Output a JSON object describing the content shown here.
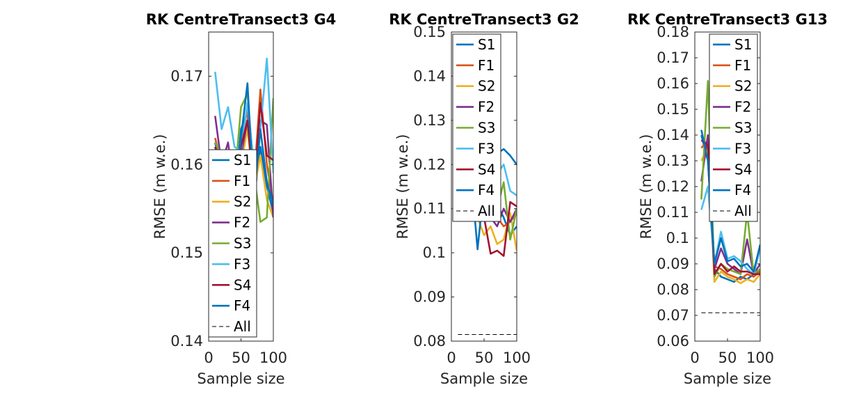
{
  "chart_data": [
    {
      "type": "line",
      "title": "RK CentreTransect3 G4",
      "xlabel": "Sample size",
      "ylabel": "RMSE (m w.e.)",
      "xlim": [
        0,
        100
      ],
      "ylim": [
        0.14,
        0.175
      ],
      "xticks": [
        "0",
        "50",
        "100"
      ],
      "yticks": [
        0.14,
        0.15,
        0.16,
        0.17
      ],
      "ytick_labels": [
        "0.14",
        "0.15",
        "0.16",
        "0.17"
      ],
      "legend_position": "lower-right",
      "x": [
        10,
        20,
        30,
        40,
        50,
        60,
        70,
        80,
        90,
        100
      ],
      "series": [
        {
          "name": "S1",
          "color": "#0072BD",
          "dash": false,
          "values": [
            0.1625,
            0.159,
            0.158,
            0.156,
            0.164,
            0.166,
            0.156,
            0.162,
            0.1575,
            0.1545
          ]
        },
        {
          "name": "F1",
          "color": "#D95319",
          "dash": false,
          "values": [
            0.163,
            0.16,
            0.161,
            0.159,
            0.162,
            0.1665,
            0.158,
            0.1685,
            0.16,
            0.1555
          ]
        },
        {
          "name": "S2",
          "color": "#EDB120",
          "dash": false,
          "values": [
            0.16,
            0.158,
            0.157,
            0.155,
            0.16,
            0.164,
            0.157,
            0.161,
            0.156,
            0.154
          ]
        },
        {
          "name": "F2",
          "color": "#7E2F8E",
          "dash": false,
          "values": [
            0.1655,
            0.16,
            0.1625,
            0.157,
            0.161,
            0.165,
            0.1575,
            0.165,
            0.1645,
            0.154
          ]
        },
        {
          "name": "S3",
          "color": "#77AC30",
          "dash": false,
          "values": [
            0.1625,
            0.161,
            0.16,
            0.158,
            0.1665,
            0.168,
            0.159,
            0.1535,
            0.154,
            0.1675
          ]
        },
        {
          "name": "F3",
          "color": "#4DBEEE",
          "dash": false,
          "values": [
            0.1705,
            0.164,
            0.1665,
            0.162,
            0.1615,
            0.167,
            0.16,
            0.164,
            0.172,
            0.159
          ]
        },
        {
          "name": "S4",
          "color": "#A2142F",
          "dash": false,
          "values": [
            0.162,
            0.159,
            0.16,
            0.156,
            0.162,
            0.165,
            0.157,
            0.167,
            0.161,
            0.1605
          ]
        },
        {
          "name": "F4",
          "color": "#0072BD",
          "dash": false,
          "values": [
            0.161,
            0.159,
            0.158,
            0.156,
            0.163,
            0.1692,
            0.156,
            0.164,
            0.158,
            0.1555
          ]
        },
        {
          "name": "All",
          "color": "#000000",
          "dash": true,
          "values": [
            0.1398,
            0.1398,
            0.1398,
            0.1398,
            0.1398,
            0.1398,
            0.1398,
            0.1398,
            0.1398,
            0.1398
          ]
        }
      ]
    },
    {
      "type": "line",
      "title": "RK CentreTransect3 G2",
      "xlabel": "Sample size",
      "ylabel": "RMSE (m w.e.)",
      "xlim": [
        0,
        100
      ],
      "ylim": [
        0.08,
        0.15
      ],
      "xticks": [
        "0",
        "50",
        "100"
      ],
      "yticks": [
        0.08,
        0.09,
        0.1,
        0.11,
        0.12,
        0.13,
        0.14,
        0.15
      ],
      "ytick_labels": [
        "0.08",
        "0.09",
        "0.1",
        "0.11",
        "0.12",
        "0.13",
        "0.14",
        "0.15"
      ],
      "legend_position": "top-right",
      "x": [
        10,
        20,
        30,
        40,
        50,
        60,
        70,
        80,
        90,
        100
      ],
      "series": [
        {
          "name": "S1",
          "color": "#0072BD",
          "dash": false,
          "values": [
            0.113,
            0.115,
            0.112,
            0.11,
            0.114,
            0.112,
            0.111,
            0.108,
            0.104,
            0.106
          ]
        },
        {
          "name": "F1",
          "color": "#D95319",
          "dash": false,
          "values": [
            0.115,
            0.116,
            0.114,
            0.112,
            0.113,
            0.11,
            0.108,
            0.106,
            0.107,
            0.109
          ]
        },
        {
          "name": "S2",
          "color": "#EDB120",
          "dash": false,
          "values": [
            0.112,
            0.113,
            0.11,
            0.108,
            0.104,
            0.106,
            0.102,
            0.103,
            0.109,
            0.1005
          ]
        },
        {
          "name": "F2",
          "color": "#7E2F8E",
          "dash": false,
          "values": [
            0.116,
            0.117,
            0.115,
            0.113,
            0.112,
            0.108,
            0.106,
            0.11,
            0.107,
            0.11
          ]
        },
        {
          "name": "S3",
          "color": "#77AC30",
          "dash": false,
          "values": [
            0.114,
            0.115,
            0.113,
            0.111,
            0.11,
            0.108,
            0.11,
            0.116,
            0.103,
            0.11
          ]
        },
        {
          "name": "F3",
          "color": "#4DBEEE",
          "dash": false,
          "values": [
            0.118,
            0.119,
            0.117,
            0.115,
            0.114,
            0.12,
            0.118,
            0.12,
            0.114,
            0.113
          ]
        },
        {
          "name": "S4",
          "color": "#A2142F",
          "dash": false,
          "values": [
            0.113,
            0.114,
            0.112,
            0.11,
            0.108,
            0.0998,
            0.1005,
            0.0993,
            0.1115,
            0.1105
          ]
        },
        {
          "name": "F4",
          "color": "#0072BD",
          "dash": false,
          "values": [
            0.12,
            0.121,
            0.118,
            0.1008,
            0.115,
            0.117,
            0.1225,
            0.1235,
            0.122,
            0.12
          ]
        },
        {
          "name": "All",
          "color": "#000000",
          "dash": true,
          "values": [
            0.0815,
            0.0815,
            0.0815,
            0.0815,
            0.0815,
            0.0815,
            0.0815,
            0.0815,
            0.0815,
            0.0815
          ]
        }
      ]
    },
    {
      "type": "line",
      "title": "RK CentreTransect3 G13",
      "xlabel": "Sample size",
      "ylabel": "RMSE (m w.e.)",
      "xlim": [
        0,
        100
      ],
      "ylim": [
        0.06,
        0.18
      ],
      "xticks": [
        "0",
        "50",
        "100"
      ],
      "yticks": [
        0.06,
        0.07,
        0.08,
        0.09,
        0.1,
        0.11,
        0.12,
        0.13,
        0.14,
        0.15,
        0.16,
        0.17,
        0.18
      ],
      "ytick_labels": [
        "0.06",
        "0.07",
        "0.08",
        "0.09",
        "0.1",
        "0.11",
        "0.12",
        "0.13",
        "0.14",
        "0.15",
        "0.16",
        "0.17",
        "0.18"
      ],
      "legend_position": "top-right",
      "x": [
        10,
        20,
        30,
        40,
        50,
        60,
        70,
        80,
        90,
        100
      ],
      "series": [
        {
          "name": "S1",
          "color": "#0072BD",
          "dash": false,
          "values": [
            0.14,
            0.13,
            0.088,
            0.085,
            0.084,
            0.083,
            0.085,
            0.084,
            0.086,
            0.087
          ]
        },
        {
          "name": "F1",
          "color": "#D95319",
          "dash": false,
          "values": [
            0.135,
            0.138,
            0.089,
            0.088,
            0.086,
            0.085,
            0.084,
            0.086,
            0.085,
            0.087
          ]
        },
        {
          "name": "S2",
          "color": "#EDB120",
          "dash": false,
          "values": [
            0.13,
            0.135,
            0.083,
            0.087,
            0.085,
            0.084,
            0.0825,
            0.084,
            0.083,
            0.086
          ]
        },
        {
          "name": "F2",
          "color": "#7E2F8E",
          "dash": false,
          "values": [
            0.122,
            0.14,
            0.088,
            0.096,
            0.09,
            0.088,
            0.086,
            0.0995,
            0.086,
            0.09
          ]
        },
        {
          "name": "S3",
          "color": "#77AC30",
          "dash": false,
          "values": [
            0.115,
            0.161,
            0.085,
            0.09,
            0.088,
            0.087,
            0.086,
            0.11,
            0.086,
            0.088
          ]
        },
        {
          "name": "F3",
          "color": "#4DBEEE",
          "dash": false,
          "values": [
            0.111,
            0.12,
            0.09,
            0.1025,
            0.092,
            0.093,
            0.091,
            0.088,
            0.086,
            0.096
          ]
        },
        {
          "name": "S4",
          "color": "#A2142F",
          "dash": false,
          "values": [
            0.138,
            0.136,
            0.086,
            0.09,
            0.087,
            0.089,
            0.087,
            0.087,
            0.086,
            0.086
          ]
        },
        {
          "name": "F4",
          "color": "#0072BD",
          "dash": false,
          "values": [
            0.142,
            0.13,
            0.09,
            0.1,
            0.091,
            0.092,
            0.089,
            0.09,
            0.087,
            0.0975
          ]
        },
        {
          "name": "All",
          "color": "#000000",
          "dash": true,
          "values": [
            0.071,
            0.071,
            0.071,
            0.071,
            0.071,
            0.071,
            0.071,
            0.071,
            0.071,
            0.071
          ]
        }
      ]
    }
  ]
}
